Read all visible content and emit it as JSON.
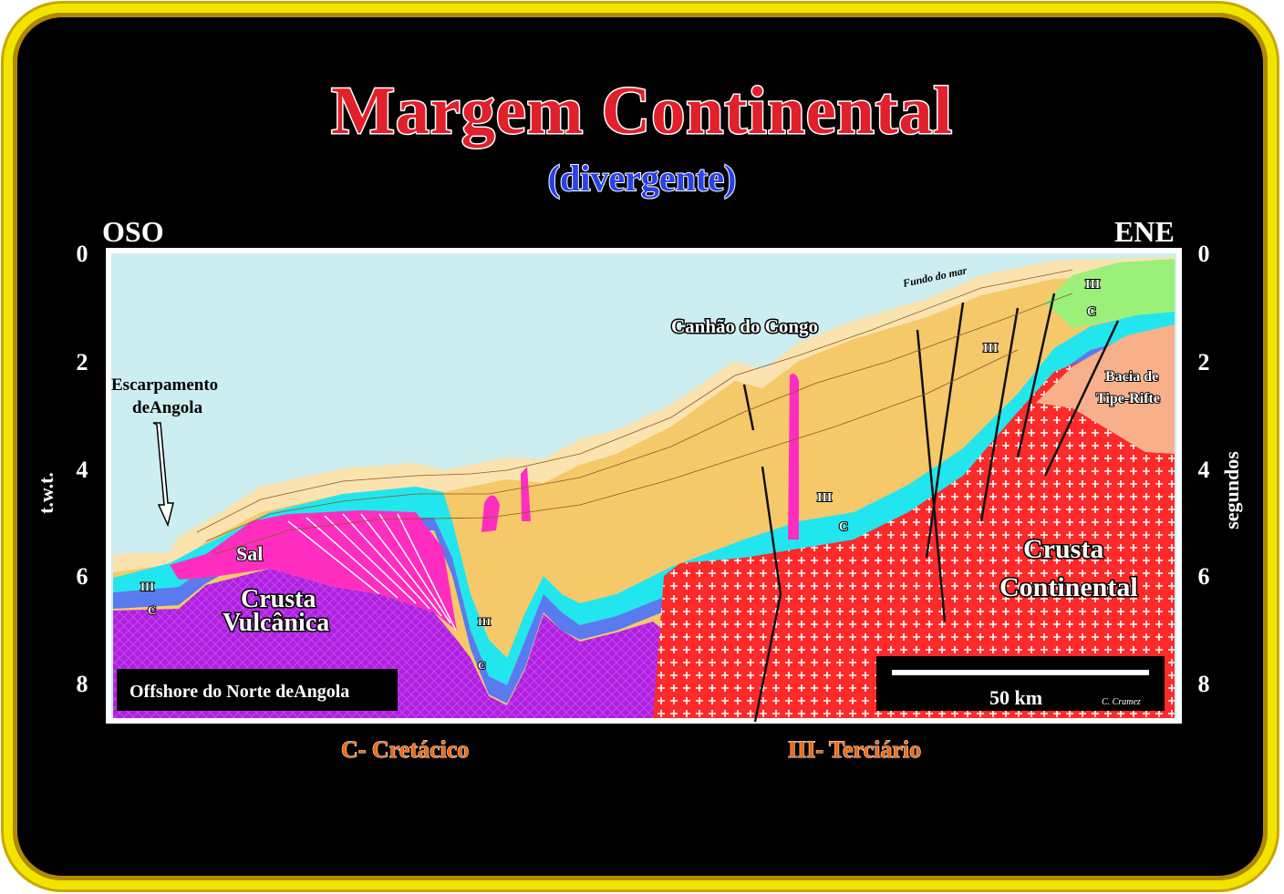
{
  "title": "Margem Continental",
  "subtitle": "(divergente)",
  "direction_left": "OSO",
  "direction_right": "ENE",
  "y_axis_left_label": "t.w.t.",
  "y_axis_right_label": "segundos",
  "y_ticks": [
    "0",
    "2",
    "4",
    "6",
    "8"
  ],
  "labels": {
    "escarpamento_line1": "Escarpamento",
    "escarpamento_line2": "deAngola",
    "canhao": "Canhão do Congo",
    "fundo": "Fundo do mar",
    "sal": "Sal",
    "crusta_vulcanica_line1": "Crusta",
    "crusta_vulcanica_line2": "Vulcânica",
    "crusta_continental_line1": "Crusta",
    "crusta_continental_line2": "Continental",
    "bacia_line1": "Bacia de",
    "bacia_line2": "Tipe-Rifte",
    "unit_iii": "III",
    "unit_c": "C",
    "offshore": "Offshore do Norte deAngola",
    "scale": "50 km",
    "author": "C. Cramez"
  },
  "legend": {
    "cretacico": "C- Cretácico",
    "terciario": "III- Terciário"
  },
  "colors": {
    "frame": "#f2e400",
    "title": "#e0202b",
    "subtitle": "#2842e8",
    "sea": "#cdeef0",
    "tertiary": "#f5c96a",
    "cretaceous_cyan": "#22e6ee",
    "cretaceous_blue": "#5a7af0",
    "salt": "#ff2ec0",
    "volcanic_crust": "#b020e0",
    "continental_crust": "#ff2a2a",
    "rift_basin": "#f8b08a"
  }
}
